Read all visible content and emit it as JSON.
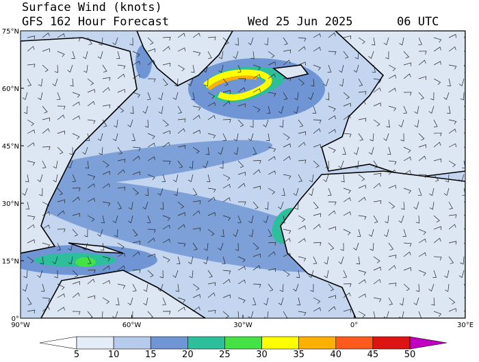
{
  "header": {
    "title": "Surface Wind (knots)",
    "subtitle": "GFS 162 Hour Forecast",
    "date": "Wed 25 Jun 2025",
    "time": "06 UTC"
  },
  "map": {
    "lat_labels": [
      "75°N",
      "60°N",
      "45°N",
      "30°N",
      "15°N",
      "0°"
    ],
    "lon_labels": [
      "90°W",
      "60°W",
      "30°W",
      "0°",
      "30°E"
    ]
  },
  "colorbar": {
    "ticks": [
      5,
      10,
      15,
      20,
      25,
      30,
      35,
      40,
      45,
      50
    ],
    "colors": [
      "#ffffff",
      "#e3ecf7",
      "#b6cbeb",
      "#6f95d4",
      "#2dbf9c",
      "#44e244",
      "#ffff00",
      "#ffb000",
      "#ff5a1e",
      "#dd1414",
      "#a00000",
      "#c000c0"
    ]
  }
}
